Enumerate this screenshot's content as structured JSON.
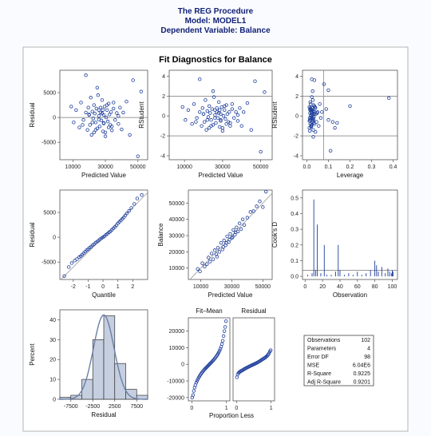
{
  "header": {
    "line1": "The REG Procedure",
    "line2": "Model: MODEL1",
    "line3": "Dependent Variable: Balance"
  },
  "figure_title": "Fit Diagnostics for Balance",
  "colors": {
    "marker": "#1f3f9c",
    "refline": "#777777",
    "bar_fill": "#c5cfe0",
    "curve": "#6b7fa6",
    "header_text": "#112277"
  },
  "chart_data": [
    {
      "type": "scatter",
      "id": "resid_pred",
      "xlabel": "Predicted Value",
      "ylabel": "Residual",
      "xlim": [
        2000,
        56000
      ],
      "ylim": [
        -8500,
        9500
      ],
      "xticks": [
        10000,
        30000,
        50000
      ],
      "yticks": [
        -5000,
        0,
        5000
      ],
      "reflines": {
        "h": [
          0
        ]
      },
      "x": [
        9000,
        10500,
        12000,
        14000,
        15000,
        16500,
        18000,
        19000,
        19500,
        20000,
        20500,
        21000,
        21500,
        22000,
        22500,
        23000,
        23000,
        23500,
        24000,
        24500,
        25000,
        25500,
        26000,
        26000,
        26500,
        27000,
        27000,
        27500,
        28000,
        28500,
        28500,
        29000,
        29000,
        29500,
        30000,
        30500,
        31000,
        31500,
        32000,
        32000,
        32500,
        33000,
        33500,
        34000,
        35000,
        36000,
        37000,
        38000,
        39000,
        40000,
        41000,
        43000,
        45000,
        47000,
        50000,
        52000,
        16000,
        20000,
        24000,
        28000,
        31000,
        34000,
        26000,
        22000,
        30000,
        35000,
        38000,
        18000,
        25000,
        29000
      ],
      "y": [
        2200,
        -1000,
        1500,
        -2000,
        3000,
        -500,
        1000,
        -2500,
        2000,
        500,
        -1500,
        4000,
        -3500,
        1200,
        -200,
        2500,
        -3000,
        800,
        -1000,
        1800,
        -2200,
        4500,
        300,
        -400,
        -1800,
        1000,
        2000,
        -600,
        3500,
        -2800,
        1500,
        -1200,
        500,
        2200,
        -3800,
        0,
        1500,
        -800,
        2800,
        -2000,
        600,
        -1500,
        1100,
        -2600,
        3000,
        -500,
        900,
        -1300,
        2000,
        -2400,
        1000,
        3200,
        -3500,
        7500,
        -7800,
        5200,
        -1500,
        600,
        -2500,
        800,
        2500,
        -1800,
        1500,
        -1000,
        -3000,
        1800,
        300,
        8500,
        6000,
        -1100
      ]
    },
    {
      "type": "scatter",
      "id": "rstud_pred",
      "xlabel": "Predicted Value",
      "ylabel": "RStudent",
      "xlim": [
        2000,
        56000
      ],
      "ylim": [
        -4.4,
        4.6
      ],
      "xticks": [
        10000,
        30000,
        50000
      ],
      "yticks": [
        -4,
        -2,
        0,
        2,
        4
      ],
      "reflines": {
        "h": [
          -2,
          2
        ]
      },
      "x": [
        9000,
        10500,
        12000,
        14000,
        15000,
        16500,
        18000,
        19000,
        19500,
        20000,
        20500,
        21000,
        21500,
        22000,
        22500,
        23000,
        23000,
        23500,
        24000,
        24500,
        25000,
        25500,
        26000,
        26000,
        26500,
        27000,
        27000,
        27500,
        28000,
        28500,
        28500,
        29000,
        29000,
        29500,
        30000,
        30500,
        31000,
        31500,
        32000,
        32000,
        32500,
        33000,
        33500,
        34000,
        35000,
        36000,
        37000,
        38000,
        39000,
        40000,
        41000,
        43000,
        45000,
        47000,
        50000,
        52000,
        16000,
        20000,
        24000,
        28000,
        31000,
        34000,
        26000,
        22000,
        30000,
        35000,
        38000,
        18000,
        25000,
        29000
      ],
      "y": [
        0.9,
        -0.4,
        0.6,
        -0.8,
        1.2,
        -0.2,
        0.4,
        -1.0,
        0.8,
        0.2,
        -0.6,
        1.6,
        -1.4,
        0.5,
        -0.1,
        1.0,
        -1.2,
        0.3,
        -0.4,
        0.7,
        -0.9,
        1.9,
        0.1,
        -0.2,
        -0.7,
        0.4,
        0.8,
        -0.2,
        1.4,
        -1.1,
        0.6,
        -0.5,
        0.2,
        0.9,
        -1.5,
        0.0,
        0.6,
        -0.3,
        1.1,
        -0.8,
        0.2,
        -0.6,
        0.4,
        -1.0,
        1.2,
        -0.2,
        0.4,
        -0.5,
        0.8,
        -1.0,
        0.4,
        1.3,
        -1.4,
        3.5,
        -3.6,
        2.4,
        -0.6,
        0.2,
        -1.0,
        0.3,
        1.0,
        -0.7,
        0.6,
        -0.4,
        -1.2,
        0.7,
        0.1,
        3.7,
        2.5,
        -0.4
      ]
    },
    {
      "type": "scatter",
      "id": "rstud_lev",
      "xlabel": "Leverage",
      "ylabel": "RStudent",
      "xlim": [
        -0.02,
        0.42
      ],
      "ylim": [
        -4.4,
        4.6
      ],
      "xticks": [
        0.0,
        0.1,
        0.2,
        0.3,
        0.4
      ],
      "yticks": [
        -4,
        -2,
        0,
        2,
        4
      ],
      "reflines": {
        "h": [
          -2,
          2
        ],
        "v": [
          0.078
        ]
      },
      "x": [
        0.012,
        0.014,
        0.015,
        0.016,
        0.018,
        0.02,
        0.021,
        0.022,
        0.024,
        0.025,
        0.026,
        0.028,
        0.03,
        0.031,
        0.033,
        0.035,
        0.012,
        0.015,
        0.017,
        0.019,
        0.021,
        0.023,
        0.026,
        0.029,
        0.032,
        0.036,
        0.04,
        0.013,
        0.016,
        0.02,
        0.024,
        0.028,
        0.034,
        0.038,
        0.014,
        0.018,
        0.022,
        0.027,
        0.031,
        0.036,
        0.042,
        0.045,
        0.05,
        0.055,
        0.06,
        0.065,
        0.07,
        0.012,
        0.016,
        0.02,
        0.025,
        0.03,
        0.035,
        0.08,
        0.1,
        0.11,
        0.12,
        0.14,
        0.2,
        0.38,
        0.09,
        0.1,
        0.13,
        0.015,
        0.019,
        0.023,
        0.027,
        0.032,
        0.04,
        0.048
      ],
      "y": [
        0.9,
        -0.4,
        0.6,
        -0.8,
        1.2,
        -0.2,
        0.4,
        -1.0,
        0.8,
        0.2,
        -0.6,
        1.6,
        -1.4,
        0.5,
        -0.1,
        1.0,
        -1.2,
        0.3,
        -0.4,
        0.7,
        -0.9,
        1.9,
        0.1,
        -0.2,
        -0.7,
        0.4,
        0.8,
        -0.2,
        1.4,
        -1.1,
        0.6,
        -0.5,
        0.2,
        0.9,
        -1.5,
        0.0,
        0.6,
        -0.3,
        1.1,
        -0.8,
        0.2,
        -0.6,
        0.4,
        -1.0,
        1.2,
        -0.2,
        0.4,
        -0.5,
        0.8,
        -1.0,
        0.4,
        -2.1,
        3.6,
        3.2,
        2.6,
        -3.5,
        -0.6,
        -0.7,
        1.0,
        1.8,
        0.7,
        -0.4,
        -1.2,
        0.7,
        0.1,
        3.7,
        2.5,
        -0.4,
        -1.6,
        0.3
      ]
    },
    {
      "type": "scatter",
      "id": "resid_qq",
      "xlabel": "Quantile",
      "ylabel": "Residual",
      "xlim": [
        -2.9,
        3.0
      ],
      "ylim": [
        -8500,
        9500
      ],
      "xticks": [
        -2,
        -1,
        0,
        1,
        2
      ],
      "yticks": [
        -5000,
        0,
        5000
      ],
      "reflines": {
        "line": [
          [
            -3.0,
            -9000
          ],
          [
            3.0,
            9000
          ]
        ]
      },
      "x": [
        -2.6,
        -2.3,
        -2.1,
        -1.9,
        -1.75,
        -1.6,
        -1.5,
        -1.4,
        -1.3,
        -1.2,
        -1.1,
        -1.0,
        -0.9,
        -0.8,
        -0.7,
        -0.6,
        -0.5,
        -0.4,
        -0.3,
        -0.2,
        -0.1,
        0.0,
        0.1,
        0.2,
        0.3,
        0.4,
        0.5,
        0.6,
        0.7,
        0.8,
        0.9,
        1.0,
        1.1,
        1.2,
        1.3,
        1.4,
        1.5,
        1.6,
        1.75,
        1.9,
        2.1,
        2.3,
        2.6
      ],
      "y": [
        -7800,
        -6000,
        -5200,
        -4700,
        -4400,
        -4000,
        -3800,
        -3500,
        -3200,
        -2900,
        -2600,
        -2400,
        -2100,
        -1900,
        -1600,
        -1400,
        -1100,
        -900,
        -700,
        -400,
        -200,
        0,
        200,
        500,
        700,
        1000,
        1200,
        1500,
        1800,
        2100,
        2400,
        2800,
        3100,
        3400,
        3700,
        4000,
        4400,
        4800,
        5300,
        5900,
        6700,
        7800,
        8500
      ]
    },
    {
      "type": "scatter",
      "id": "obs_pred",
      "xlabel": "Predicted Value",
      "ylabel": "Balance",
      "xlim": [
        2000,
        56000
      ],
      "ylim": [
        3000,
        58000
      ],
      "xticks": [
        10000,
        30000,
        50000
      ],
      "yticks": [
        10000,
        20000,
        30000,
        40000,
        50000
      ],
      "reflines": {
        "line": [
          [
            2000,
            2000
          ],
          [
            56000,
            56000
          ]
        ]
      },
      "x": [
        8000,
        9500,
        11000,
        12500,
        14000,
        15000,
        16000,
        17000,
        18000,
        19000,
        20000,
        21000,
        22000,
        23000,
        24000,
        25000,
        26000,
        27000,
        28000,
        29000,
        30000,
        31000,
        32000,
        33000,
        34000,
        35000,
        36000,
        37000,
        38000,
        40000,
        42000,
        44000,
        46000,
        48000,
        50000,
        52000,
        20500,
        24500,
        28500,
        32500,
        26500,
        30500
      ],
      "y": [
        9500,
        8000,
        13000,
        11000,
        12500,
        16500,
        14000,
        19000,
        15500,
        21000,
        18500,
        22500,
        20000,
        25500,
        21500,
        27000,
        24000,
        29500,
        26000,
        31000,
        28500,
        33500,
        30500,
        35000,
        32500,
        37500,
        34000,
        40000,
        36500,
        41000,
        44500,
        45000,
        48000,
        51000,
        47500,
        57000,
        17000,
        23000,
        27500,
        32000,
        25500,
        29000
      ]
    },
    {
      "type": "scatter",
      "id": "cooks_d",
      "xlabel": "Observation",
      "ylabel": "Cook's D",
      "xlim": [
        -3,
        106
      ],
      "ylim": [
        -0.02,
        0.55
      ],
      "xticks": [
        0,
        20,
        40,
        60,
        80,
        100
      ],
      "yticks": [
        0.0,
        0.1,
        0.2,
        0.3,
        0.4,
        0.5
      ],
      "reflines": {
        "h": [
          0.039
        ]
      },
      "x": [
        3,
        8,
        10,
        12,
        14,
        18,
        22,
        25,
        30,
        35,
        38,
        40,
        45,
        50,
        55,
        60,
        65,
        70,
        75,
        80,
        82,
        84,
        88,
        92,
        95,
        97,
        99,
        100,
        101
      ],
      "y": [
        0.01,
        0.02,
        0.49,
        0.04,
        0.33,
        0.02,
        0.2,
        0.01,
        0.01,
        0.03,
        0.2,
        0.04,
        0.01,
        0.02,
        0.01,
        0.03,
        0.01,
        0.02,
        0.04,
        0.1,
        0.07,
        0.03,
        0.06,
        0.02,
        0.05,
        0.03,
        0.02,
        0.04,
        0.03
      ]
    },
    {
      "type": "bar",
      "id": "resid_hist",
      "xlabel": "Residual",
      "ylabel": "Percent",
      "bin_edges": [
        -10000,
        -7500,
        -5000,
        -2500,
        0,
        2500,
        5000,
        7500,
        10000
      ],
      "values": [
        1,
        2,
        10,
        30,
        42,
        18,
        5,
        2
      ],
      "xticks": [
        -7500,
        -2500,
        2500,
        7500
      ],
      "yticks": [
        0,
        10,
        20,
        30,
        40
      ],
      "xlim": [
        -10000,
        10000
      ],
      "ylim": [
        0,
        45
      ],
      "curve_mean": 0,
      "curve_sd": 2350
    },
    {
      "type": "scatter",
      "id": "rf_spread",
      "xlabel": "Proportion Less",
      "left_title": "Fit–Mean",
      "right_title": "Residual",
      "xticks": [
        0,
        1
      ],
      "xlim": [
        -0.1,
        1.1
      ],
      "yticks": [
        -20000,
        -10000,
        0,
        10000,
        20000
      ],
      "ylim": [
        -22000,
        28000
      ],
      "fit_y": [
        -20000,
        -18500,
        -16000,
        -14000,
        -12500,
        -11000,
        -10000,
        -9000,
        -8000,
        -7200,
        -6400,
        -5700,
        -5000,
        -4400,
        -3800,
        -3200,
        -2700,
        -2200,
        -1700,
        -1200,
        -700,
        -200,
        300,
        800,
        1300,
        1800,
        2300,
        2900,
        3500,
        4100,
        4800,
        5500,
        6300,
        7200,
        8200,
        9300,
        10600,
        12200,
        14200,
        17000,
        20000,
        22500,
        26000
      ],
      "resid_y": [
        -7800,
        -6000,
        -5200,
        -4700,
        -4400,
        -4000,
        -3800,
        -3500,
        -3200,
        -2900,
        -2600,
        -2400,
        -2100,
        -1900,
        -1600,
        -1400,
        -1100,
        -900,
        -700,
        -400,
        -200,
        0,
        200,
        500,
        700,
        1000,
        1200,
        1500,
        1800,
        2100,
        2400,
        2800,
        3100,
        3400,
        3700,
        4000,
        4400,
        4800,
        5300,
        5900,
        6700,
        7800,
        8500
      ]
    },
    {
      "type": "table",
      "id": "fit_stats",
      "rows": [
        [
          "Observations",
          "102"
        ],
        [
          "Parameters",
          "4"
        ],
        [
          "Error DF",
          "98"
        ],
        [
          "MSE",
          "6.04E6"
        ],
        [
          "R-Square",
          "0.9225"
        ],
        [
          "Adj R-Square",
          "0.9201"
        ]
      ]
    }
  ]
}
